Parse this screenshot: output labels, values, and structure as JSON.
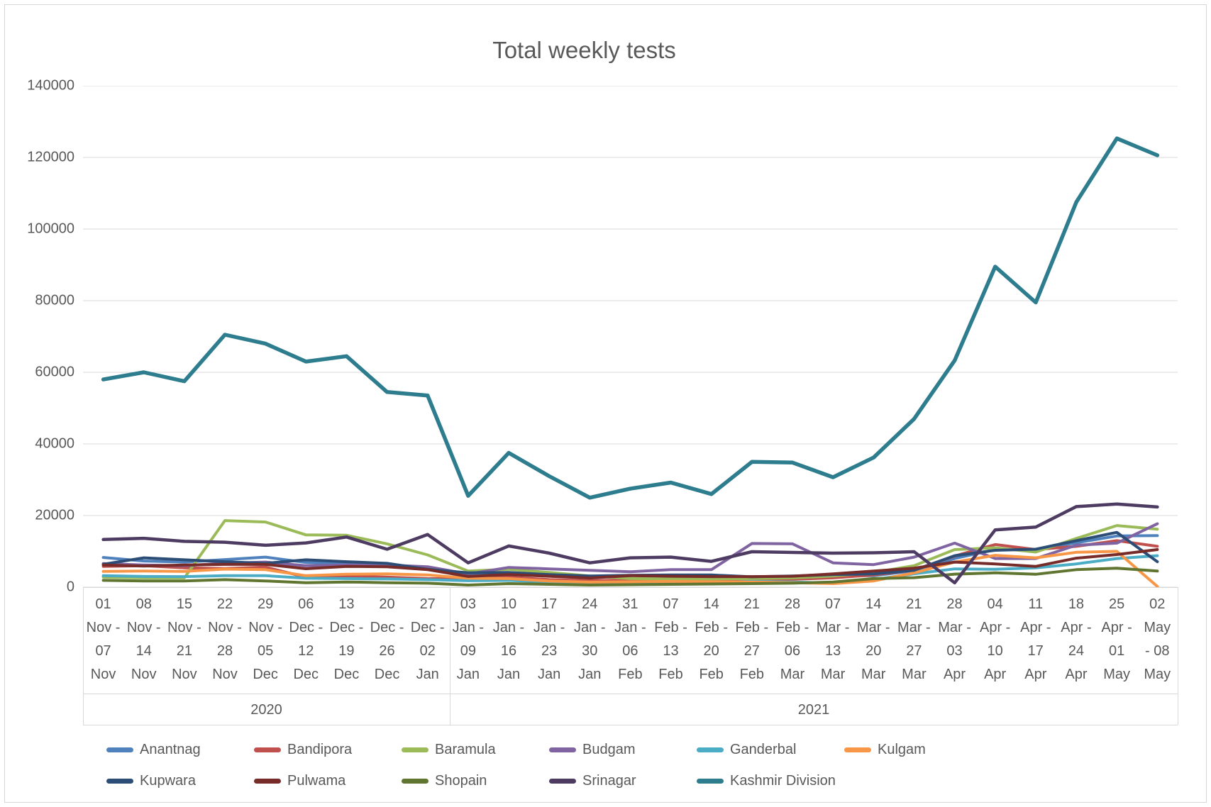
{
  "title": "Total weekly tests",
  "chart_data": {
    "type": "line",
    "title": "Total weekly tests",
    "grid": true,
    "legend_position": "bottom",
    "y_axis": {
      "min": 0,
      "max": 140000,
      "step": 20000,
      "tick_labels": [
        "140000",
        "120000",
        "100000",
        "80000",
        "60000",
        "40000",
        "20000",
        "0"
      ]
    },
    "x_axis": {
      "group_labels": [
        "2020",
        "2021"
      ],
      "group_split_index": 9,
      "tick_labels": [
        [
          "01",
          "Nov -",
          "07",
          "Nov"
        ],
        [
          "08",
          "Nov -",
          "14",
          "Nov"
        ],
        [
          "15",
          "Nov -",
          "21",
          "Nov"
        ],
        [
          "22",
          "Nov -",
          "28",
          "Nov"
        ],
        [
          "29",
          "Nov -",
          "05",
          "Dec"
        ],
        [
          "06",
          "Dec -",
          "12",
          "Dec"
        ],
        [
          "13",
          "Dec -",
          "19",
          "Dec"
        ],
        [
          "20",
          "Dec -",
          "26",
          "Dec"
        ],
        [
          "27",
          "Dec -",
          "02",
          "Jan"
        ],
        [
          "03",
          "Jan -",
          "09",
          "Jan"
        ],
        [
          "10",
          "Jan -",
          "16",
          "Jan"
        ],
        [
          "17",
          "Jan -",
          "23",
          "Jan"
        ],
        [
          "24",
          "Jan -",
          "30",
          "Jan"
        ],
        [
          "31",
          "Jan -",
          "06",
          "Feb"
        ],
        [
          "07",
          "Feb -",
          "13",
          "Feb"
        ],
        [
          "14",
          "Feb -",
          "20",
          "Feb"
        ],
        [
          "21",
          "Feb -",
          "27",
          "Feb"
        ],
        [
          "28",
          "Feb -",
          "06",
          "Mar"
        ],
        [
          "07",
          "Mar -",
          "13",
          "Mar"
        ],
        [
          "14",
          "Mar -",
          "20",
          "Mar"
        ],
        [
          "21",
          "Mar -",
          "27",
          "Mar"
        ],
        [
          "28",
          "Mar -",
          "03",
          "Apr"
        ],
        [
          "04",
          "Apr -",
          "10",
          "Apr"
        ],
        [
          "11",
          "Apr -",
          "17",
          "Apr"
        ],
        [
          "18",
          "Apr -",
          "24",
          "Apr"
        ],
        [
          "25",
          "Apr -",
          "01",
          "May"
        ],
        [
          "02",
          "May",
          "- 08",
          "May"
        ]
      ]
    },
    "series": [
      {
        "name": "Anantnag",
        "color": "#4F81BD",
        "width": 4,
        "values": [
          8300,
          7300,
          7000,
          7700,
          8400,
          6900,
          6700,
          6400,
          5200,
          3600,
          3800,
          3300,
          2900,
          3200,
          3300,
          3100,
          2500,
          2700,
          3100,
          3200,
          4600,
          8000,
          10500,
          10600,
          12400,
          14300,
          14400
        ]
      },
      {
        "name": "Bandipora",
        "color": "#C0504D",
        "width": 4,
        "values": [
          5800,
          6000,
          5400,
          5200,
          5600,
          2800,
          3100,
          2800,
          2400,
          2300,
          2800,
          2100,
          1800,
          2000,
          2100,
          1900,
          2100,
          2200,
          2600,
          3400,
          4800,
          8700,
          11900,
          10500,
          11400,
          13000,
          11400
        ]
      },
      {
        "name": "Baramula",
        "color": "#9BBB59",
        "width": 4,
        "values": [
          2800,
          2600,
          2600,
          18600,
          18200,
          14600,
          14500,
          12100,
          9000,
          4500,
          5000,
          4100,
          3100,
          2400,
          2300,
          2300,
          2400,
          2600,
          3100,
          4100,
          6000,
          10500,
          11000,
          9800,
          13600,
          17200,
          16200
        ]
      },
      {
        "name": "Budgam",
        "color": "#8064A2",
        "width": 4,
        "values": [
          6600,
          6200,
          6000,
          6700,
          7000,
          6000,
          6200,
          6200,
          5700,
          3700,
          5500,
          5100,
          4700,
          4300,
          4900,
          4900,
          12200,
          12100,
          6800,
          6300,
          8400,
          12300,
          8000,
          8000,
          11700,
          12300,
          17700
        ]
      },
      {
        "name": "Ganderbal",
        "color": "#4BACC6",
        "width": 4,
        "values": [
          3200,
          3000,
          2950,
          3200,
          3200,
          2500,
          2400,
          2300,
          2100,
          1800,
          1900,
          1400,
          1100,
          1200,
          1300,
          1200,
          1650,
          1450,
          1100,
          2100,
          3750,
          5100,
          5000,
          5400,
          6500,
          8000,
          8800
        ]
      },
      {
        "name": "Kulgam",
        "color": "#F79646",
        "width": 4,
        "values": [
          4400,
          4500,
          4400,
          5050,
          4900,
          3200,
          3600,
          3700,
          3400,
          2500,
          2400,
          1700,
          1400,
          1500,
          1600,
          1500,
          1450,
          1250,
          1000,
          1750,
          4000,
          7000,
          8900,
          8200,
          9750,
          10000,
          200
        ]
      },
      {
        "name": "Kupwara",
        "color": "#2C4D75",
        "width": 4,
        "values": [
          6400,
          8200,
          7650,
          7100,
          6650,
          7650,
          7100,
          6650,
          5000,
          4000,
          4100,
          3500,
          3100,
          3300,
          3400,
          3400,
          2900,
          3100,
          3500,
          3700,
          4700,
          8800,
          10300,
          10600,
          13000,
          15300,
          7100
        ]
      },
      {
        "name": "Pulwama",
        "color": "#772C2A",
        "width": 4,
        "values": [
          6200,
          5900,
          6200,
          6350,
          6350,
          5150,
          5800,
          5700,
          4900,
          3000,
          3500,
          3050,
          2550,
          3200,
          3050,
          2950,
          2950,
          3050,
          3700,
          4500,
          5300,
          7000,
          6500,
          5800,
          8100,
          9100,
          10500
        ]
      },
      {
        "name": "Shopain",
        "color": "#5F7530",
        "width": 4,
        "values": [
          1900,
          1750,
          1750,
          2100,
          1750,
          1250,
          1450,
          1250,
          1100,
          600,
          1000,
          800,
          600,
          700,
          800,
          900,
          1000,
          1100,
          1450,
          2400,
          2650,
          3650,
          4000,
          3600,
          4900,
          5300,
          4500
        ]
      },
      {
        "name": "Srinagar",
        "color": "#4D3B62",
        "width": 4.5,
        "values": [
          13300,
          13650,
          12800,
          12550,
          11700,
          12350,
          14000,
          10600,
          14700,
          6800,
          11500,
          9500,
          6800,
          8200,
          8400,
          7200,
          9900,
          9700,
          9500,
          9600,
          9900,
          1200,
          16000,
          16800,
          22500,
          23200,
          22400
        ]
      },
      {
        "name": "Kashmir Division",
        "color": "#2E7D8E",
        "width": 5.5,
        "values": [
          58000,
          60000,
          57500,
          70500,
          68000,
          63000,
          64500,
          54500,
          53500,
          25500,
          37500,
          31000,
          25000,
          27500,
          29200,
          26000,
          35000,
          34800,
          30700,
          36200,
          47000,
          63300,
          89500,
          79500,
          107500,
          125300,
          120600
        ]
      }
    ],
    "legend_rows": [
      [
        "Anantnag",
        "Bandipora",
        "Baramula",
        "Budgam",
        "Ganderbal",
        "Kulgam"
      ],
      [
        "Kupwara",
        "Pulwama",
        "Shopain",
        "Srinagar",
        "Kashmir Division"
      ]
    ]
  },
  "colors": {
    "gridline": "#d9d9d9",
    "axis_text": "#595959",
    "frame_border": "#d6d6d6"
  }
}
